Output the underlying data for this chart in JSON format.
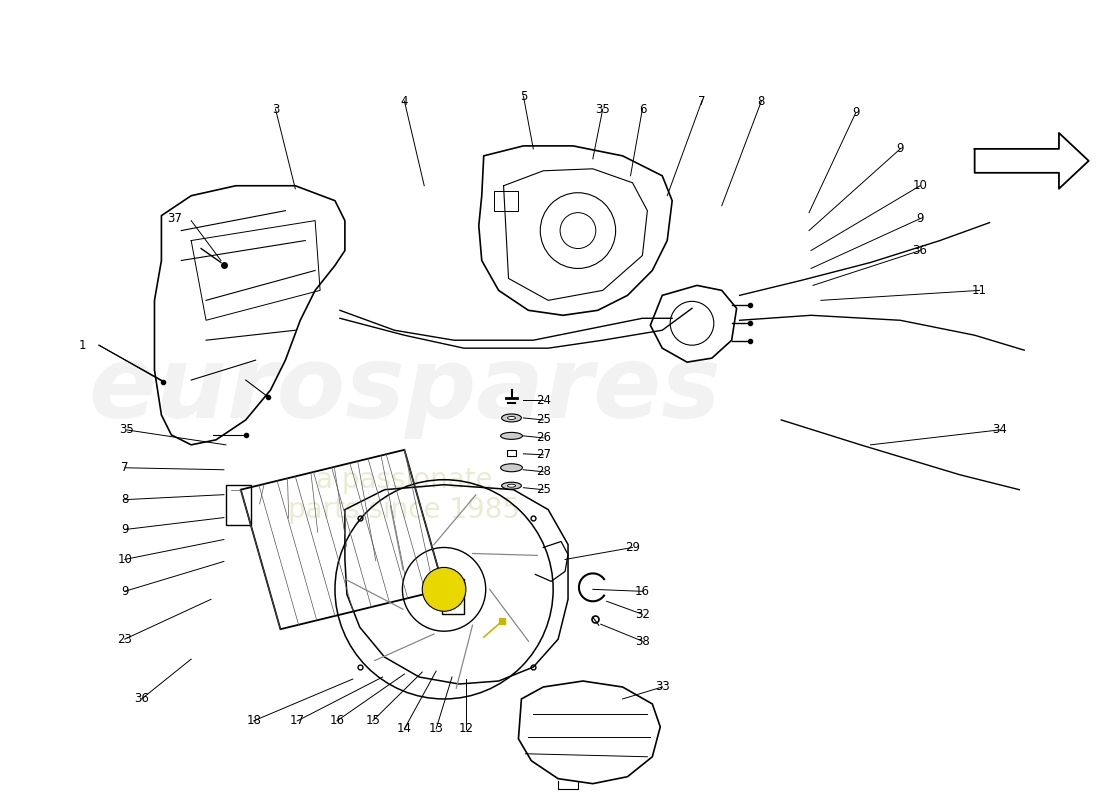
{
  "bg_color": "#ffffff",
  "lc": "#000000",
  "label_fs": 8.5,
  "wm1_text": "eurospares",
  "wm2_text": "a passionate parts since 1985",
  "figsize": [
    11.0,
    8.0
  ],
  "dpi": 100
}
